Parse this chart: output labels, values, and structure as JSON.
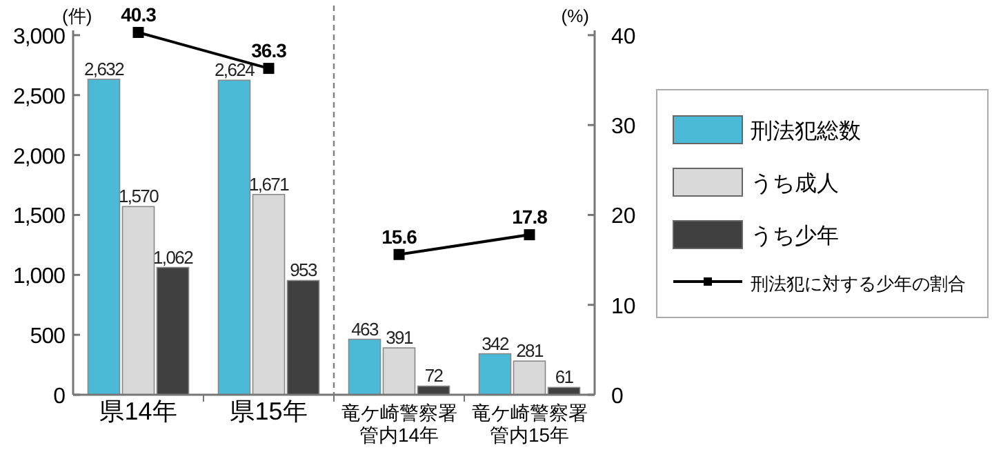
{
  "chart_data": {
    "type": "bar",
    "categories": [
      "県14年",
      "県15年",
      "竜ケ崎警察署管内14年",
      "竜ケ崎警察署管内15年"
    ],
    "ylabel": "(件)",
    "y2label": "(%)",
    "ylim": [
      0,
      3040
    ],
    "yticks": [
      {
        "value": 0,
        "label": "0"
      },
      {
        "value": 500,
        "label": "500"
      },
      {
        "value": 1000,
        "label": "1,000"
      },
      {
        "value": 1500,
        "label": "1,500"
      },
      {
        "value": 2000,
        "label": "2,000"
      },
      {
        "value": 2500,
        "label": "2,500"
      },
      {
        "value": 3000,
        "label": "3,000"
      }
    ],
    "y2lim": [
      0,
      40.53
    ],
    "y2ticks": [
      0,
      10,
      20,
      30,
      40
    ],
    "series": [
      {
        "name": "刑法犯総数",
        "color": "#4bbad6",
        "values": [
          2632,
          2624,
          463,
          342
        ],
        "value_labels": [
          "2,632",
          "2,624",
          "463",
          "342"
        ]
      },
      {
        "name": "うち成人",
        "color": "#d9d9d9",
        "values": [
          1570,
          1671,
          391,
          281
        ],
        "value_labels": [
          "1,570",
          "1,671",
          "391",
          "281"
        ]
      },
      {
        "name": "うち少年",
        "color": "#404040",
        "values": [
          1062,
          953,
          72,
          61
        ],
        "value_labels": [
          "1,062",
          "953",
          "72",
          "61"
        ]
      },
      {
        "name": "刑法犯に対する少年の割合",
        "type": "line",
        "axis": "y2",
        "color": "#000000",
        "marker": "square",
        "x": [
          "県14年",
          "県15年"
        ],
        "values": [
          40.3,
          36.3
        ],
        "value_labels": [
          "40.3",
          "36.3"
        ]
      },
      {
        "type": "line",
        "axis": "y2",
        "color": "#000000",
        "marker": "square",
        "x": [
          "竜ケ崎警察署管内14年",
          "竜ケ崎警察署管内15年"
        ],
        "values": [
          15.6,
          17.8
        ],
        "value_labels": [
          "15.6",
          "17.8"
        ]
      }
    ],
    "legend": "right",
    "grid": false
  }
}
